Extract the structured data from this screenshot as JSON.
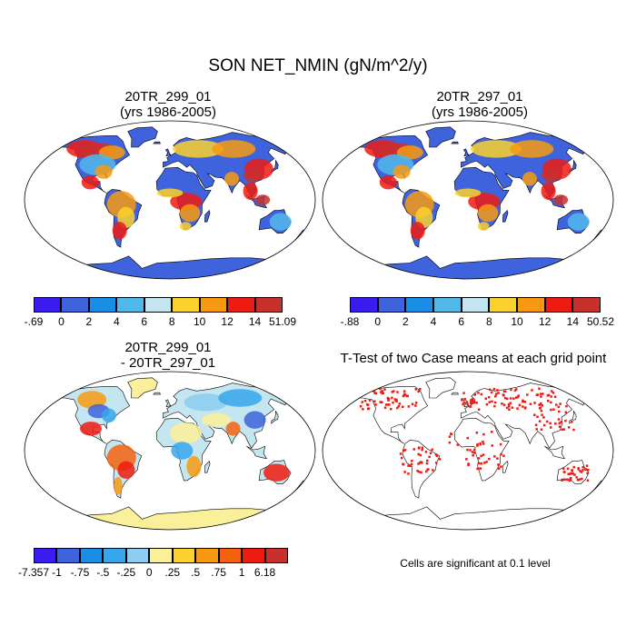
{
  "title": "SON NET_NMIN (gN/m^2/y)",
  "panels": [
    {
      "title_line1": "20TR_299_01",
      "title_line2": "(yrs 1986-2005)",
      "colorbar_colors": [
        "#3a1cf0",
        "#3e63dc",
        "#1a8ee6",
        "#52b8ea",
        "#c4e6f0",
        "#fcd12e",
        "#f79a12",
        "#ee1b12",
        "#c8302e"
      ],
      "colorbar_labels": [
        "-.69",
        "0",
        "2",
        "4",
        "6",
        "8",
        "10",
        "12",
        "14",
        "51.09"
      ]
    },
    {
      "title_line1": "20TR_297_01",
      "title_line2": "(yrs 1986-2005)",
      "colorbar_colors": [
        "#3a1cf0",
        "#3e63dc",
        "#1a8ee6",
        "#52b8ea",
        "#c4e6f0",
        "#fcd12e",
        "#f79a12",
        "#ee1b12",
        "#c8302e"
      ],
      "colorbar_labels": [
        "-.88",
        "0",
        "2",
        "4",
        "6",
        "8",
        "10",
        "12",
        "14",
        "50.52"
      ]
    },
    {
      "title_line1": "20TR_299_01",
      "title_line2": "- 20TR_297_01",
      "colorbar_colors": [
        "#3a1cf0",
        "#3e63dc",
        "#1a8ee6",
        "#37a6ec",
        "#8ccdf0",
        "#fbf09a",
        "#fcd12e",
        "#f79a12",
        "#f5620f",
        "#ee1b12",
        "#c8302e"
      ],
      "colorbar_labels": [
        "-7.357",
        "-1",
        "-.75",
        "-.5",
        "-.25",
        "0",
        ".25",
        ".5",
        ".75",
        "1",
        "6.18"
      ]
    },
    {
      "title_line1": "T-Test of two Case means at each grid point",
      "note": "Cells are significant at 0.1 level"
    }
  ]
}
